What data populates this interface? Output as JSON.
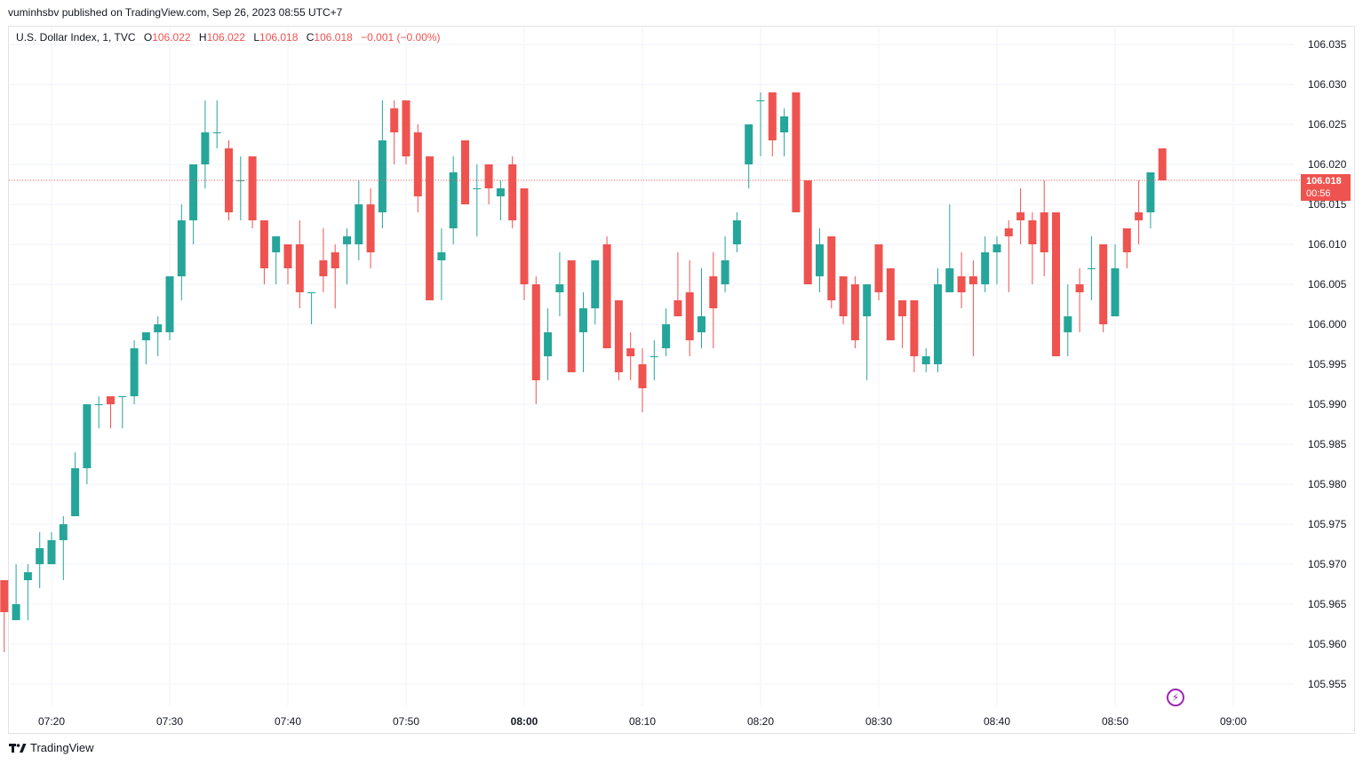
{
  "header": {
    "publish_text": "vuminhsbv published on TradingView.com, Sep 26, 2023 08:55 UTC+7"
  },
  "legend": {
    "symbol": "U.S. Dollar Index, 1, TVC",
    "open_label": "O",
    "open_value": "106.022",
    "high_label": "H",
    "high_value": "106.022",
    "low_label": "L",
    "low_value": "106.018",
    "close_label": "C",
    "close_value": "106.018",
    "change": "−0.001 (−0.00%)"
  },
  "price_tag": {
    "price": "106.018",
    "countdown": "00:56"
  },
  "brand": {
    "name": "TradingView",
    "logo_icon": "tradingview-logo-icon"
  },
  "flash_icon": "lightning-icon",
  "colors": {
    "up": "#26a69a",
    "down": "#ef5350",
    "grid": "#f0f3fa",
    "last_price": "#ef5350"
  },
  "chart_data": {
    "type": "candlestick",
    "interval": "1 minute",
    "y_axis": {
      "range": [
        105.952,
        106.037
      ],
      "ticks": [
        "106.035",
        "106.030",
        "106.025",
        "106.020",
        "106.015",
        "106.010",
        "106.005",
        "106.000",
        "105.995",
        "105.990",
        "105.985",
        "105.980",
        "105.975",
        "105.970",
        "105.965",
        "105.960",
        "105.955"
      ]
    },
    "x_axis": {
      "ticks": [
        "07:20",
        "07:30",
        "07:40",
        "07:50",
        "08:00",
        "08:10",
        "08:20",
        "08:30",
        "08:40",
        "08:50",
        "09:00"
      ],
      "bold_ticks": [
        "08:00"
      ]
    },
    "last_price": 106.018,
    "grid": true,
    "candles": [
      {
        "t": "07:16",
        "o": 105.968,
        "h": 105.968,
        "l": 105.959,
        "c": 105.964
      },
      {
        "t": "07:17",
        "o": 105.963,
        "h": 105.97,
        "l": 105.963,
        "c": 105.965
      },
      {
        "t": "07:18",
        "o": 105.968,
        "h": 105.97,
        "l": 105.963,
        "c": 105.969
      },
      {
        "t": "07:19",
        "o": 105.97,
        "h": 105.974,
        "l": 105.967,
        "c": 105.972
      },
      {
        "t": "07:20",
        "o": 105.97,
        "h": 105.974,
        "l": 105.97,
        "c": 105.973
      },
      {
        "t": "07:21",
        "o": 105.973,
        "h": 105.976,
        "l": 105.968,
        "c": 105.975
      },
      {
        "t": "07:22",
        "o": 105.976,
        "h": 105.984,
        "l": 105.976,
        "c": 105.982
      },
      {
        "t": "07:23",
        "o": 105.982,
        "h": 105.99,
        "l": 105.98,
        "c": 105.99
      },
      {
        "t": "07:24",
        "o": 105.99,
        "h": 105.991,
        "l": 105.987,
        "c": 105.99
      },
      {
        "t": "07:25",
        "o": 105.991,
        "h": 105.991,
        "l": 105.987,
        "c": 105.99
      },
      {
        "t": "07:26",
        "o": 105.991,
        "h": 105.991,
        "l": 105.987,
        "c": 105.991
      },
      {
        "t": "07:27",
        "o": 105.991,
        "h": 105.998,
        "l": 105.99,
        "c": 105.997
      },
      {
        "t": "07:28",
        "o": 105.998,
        "h": 105.999,
        "l": 105.995,
        "c": 105.999
      },
      {
        "t": "07:29",
        "o": 105.999,
        "h": 106.001,
        "l": 105.996,
        "c": 106.0
      },
      {
        "t": "07:30",
        "o": 105.999,
        "h": 106.006,
        "l": 105.998,
        "c": 106.006
      },
      {
        "t": "07:31",
        "o": 106.006,
        "h": 106.015,
        "l": 106.003,
        "c": 106.013
      },
      {
        "t": "07:32",
        "o": 106.013,
        "h": 106.02,
        "l": 106.01,
        "c": 106.02
      },
      {
        "t": "07:33",
        "o": 106.02,
        "h": 106.028,
        "l": 106.017,
        "c": 106.024
      },
      {
        "t": "07:34",
        "o": 106.024,
        "h": 106.028,
        "l": 106.022,
        "c": 106.024
      },
      {
        "t": "07:35",
        "o": 106.022,
        "h": 106.023,
        "l": 106.013,
        "c": 106.014
      },
      {
        "t": "07:36",
        "o": 106.018,
        "h": 106.021,
        "l": 106.013,
        "c": 106.018
      },
      {
        "t": "07:37",
        "o": 106.021,
        "h": 106.021,
        "l": 106.012,
        "c": 106.013
      },
      {
        "t": "07:38",
        "o": 106.013,
        "h": 106.013,
        "l": 106.005,
        "c": 106.007
      },
      {
        "t": "07:39",
        "o": 106.009,
        "h": 106.011,
        "l": 106.005,
        "c": 106.011
      },
      {
        "t": "07:40",
        "o": 106.01,
        "h": 106.01,
        "l": 106.005,
        "c": 106.007
      },
      {
        "t": "07:41",
        "o": 106.01,
        "h": 106.013,
        "l": 106.002,
        "c": 106.004
      },
      {
        "t": "07:42",
        "o": 106.004,
        "h": 106.004,
        "l": 106.0,
        "c": 106.004
      },
      {
        "t": "07:43",
        "o": 106.008,
        "h": 106.012,
        "l": 106.004,
        "c": 106.006
      },
      {
        "t": "07:44",
        "o": 106.009,
        "h": 106.01,
        "l": 106.002,
        "c": 106.007
      },
      {
        "t": "07:45",
        "o": 106.01,
        "h": 106.012,
        "l": 106.005,
        "c": 106.011
      },
      {
        "t": "07:46",
        "o": 106.01,
        "h": 106.018,
        "l": 106.008,
        "c": 106.015
      },
      {
        "t": "07:47",
        "o": 106.015,
        "h": 106.017,
        "l": 106.007,
        "c": 106.009
      },
      {
        "t": "07:48",
        "o": 106.014,
        "h": 106.028,
        "l": 106.012,
        "c": 106.023
      },
      {
        "t": "07:49",
        "o": 106.027,
        "h": 106.028,
        "l": 106.02,
        "c": 106.024
      },
      {
        "t": "07:50",
        "o": 106.028,
        "h": 106.028,
        "l": 106.02,
        "c": 106.021
      },
      {
        "t": "07:51",
        "o": 106.024,
        "h": 106.025,
        "l": 106.014,
        "c": 106.016
      },
      {
        "t": "07:52",
        "o": 106.021,
        "h": 106.021,
        "l": 106.003,
        "c": 106.003
      },
      {
        "t": "07:53",
        "o": 106.008,
        "h": 106.012,
        "l": 106.003,
        "c": 106.009
      },
      {
        "t": "07:54",
        "o": 106.012,
        "h": 106.021,
        "l": 106.01,
        "c": 106.019
      },
      {
        "t": "07:55",
        "o": 106.023,
        "h": 106.023,
        "l": 106.015,
        "c": 106.015
      },
      {
        "t": "07:56",
        "o": 106.017,
        "h": 106.02,
        "l": 106.011,
        "c": 106.017
      },
      {
        "t": "07:57",
        "o": 106.02,
        "h": 106.02,
        "l": 106.015,
        "c": 106.017
      },
      {
        "t": "07:58",
        "o": 106.016,
        "h": 106.018,
        "l": 106.013,
        "c": 106.017
      },
      {
        "t": "07:59",
        "o": 106.02,
        "h": 106.021,
        "l": 106.012,
        "c": 106.013
      },
      {
        "t": "08:00",
        "o": 106.017,
        "h": 106.017,
        "l": 106.003,
        "c": 106.005
      },
      {
        "t": "08:01",
        "o": 106.005,
        "h": 106.006,
        "l": 105.99,
        "c": 105.993
      },
      {
        "t": "08:02",
        "o": 105.996,
        "h": 106.002,
        "l": 105.993,
        "c": 105.999
      },
      {
        "t": "08:03",
        "o": 106.004,
        "h": 106.009,
        "l": 106.001,
        "c": 106.005
      },
      {
        "t": "08:04",
        "o": 106.008,
        "h": 106.008,
        "l": 105.994,
        "c": 105.994
      },
      {
        "t": "08:05",
        "o": 105.999,
        "h": 106.004,
        "l": 105.994,
        "c": 106.002
      },
      {
        "t": "08:06",
        "o": 106.002,
        "h": 106.008,
        "l": 106.0,
        "c": 106.008
      },
      {
        "t": "08:07",
        "o": 106.01,
        "h": 106.011,
        "l": 105.997,
        "c": 105.997
      },
      {
        "t": "08:08",
        "o": 106.003,
        "h": 106.003,
        "l": 105.993,
        "c": 105.994
      },
      {
        "t": "08:09",
        "o": 105.997,
        "h": 105.999,
        "l": 105.993,
        "c": 105.996
      },
      {
        "t": "08:10",
        "o": 105.995,
        "h": 105.997,
        "l": 105.989,
        "c": 105.992
      },
      {
        "t": "08:11",
        "o": 105.996,
        "h": 105.998,
        "l": 105.993,
        "c": 105.996
      },
      {
        "t": "08:12",
        "o": 105.997,
        "h": 106.002,
        "l": 105.996,
        "c": 106.0
      },
      {
        "t": "08:13",
        "o": 106.003,
        "h": 106.009,
        "l": 106.001,
        "c": 106.001
      },
      {
        "t": "08:14",
        "o": 106.004,
        "h": 106.008,
        "l": 105.996,
        "c": 105.998
      },
      {
        "t": "08:15",
        "o": 105.999,
        "h": 106.007,
        "l": 105.997,
        "c": 106.001
      },
      {
        "t": "08:16",
        "o": 106.006,
        "h": 106.009,
        "l": 105.997,
        "c": 106.002
      },
      {
        "t": "08:17",
        "o": 106.005,
        "h": 106.011,
        "l": 106.004,
        "c": 106.008
      },
      {
        "t": "08:18",
        "o": 106.01,
        "h": 106.014,
        "l": 106.009,
        "c": 106.013
      },
      {
        "t": "08:19",
        "o": 106.02,
        "h": 106.025,
        "l": 106.017,
        "c": 106.025
      },
      {
        "t": "08:20",
        "o": 106.028,
        "h": 106.029,
        "l": 106.021,
        "c": 106.028
      },
      {
        "t": "08:21",
        "o": 106.029,
        "h": 106.029,
        "l": 106.021,
        "c": 106.023
      },
      {
        "t": "08:22",
        "o": 106.024,
        "h": 106.027,
        "l": 106.021,
        "c": 106.026
      },
      {
        "t": "08:23",
        "o": 106.029,
        "h": 106.029,
        "l": 106.014,
        "c": 106.014
      },
      {
        "t": "08:24",
        "o": 106.018,
        "h": 106.018,
        "l": 106.005,
        "c": 106.005
      },
      {
        "t": "08:25",
        "o": 106.006,
        "h": 106.012,
        "l": 106.004,
        "c": 106.01
      },
      {
        "t": "08:26",
        "o": 106.011,
        "h": 106.011,
        "l": 106.002,
        "c": 106.003
      },
      {
        "t": "08:27",
        "o": 106.006,
        "h": 106.006,
        "l": 106.0,
        "c": 106.001
      },
      {
        "t": "08:28",
        "o": 106.005,
        "h": 106.006,
        "l": 105.997,
        "c": 105.998
      },
      {
        "t": "08:29",
        "o": 106.001,
        "h": 106.005,
        "l": 105.993,
        "c": 106.005
      },
      {
        "t": "08:30",
        "o": 106.01,
        "h": 106.01,
        "l": 106.003,
        "c": 106.004
      },
      {
        "t": "08:31",
        "o": 106.007,
        "h": 106.007,
        "l": 105.998,
        "c": 105.998
      },
      {
        "t": "08:32",
        "o": 106.003,
        "h": 106.003,
        "l": 105.997,
        "c": 106.001
      },
      {
        "t": "08:33",
        "o": 106.003,
        "h": 106.003,
        "l": 105.994,
        "c": 105.996
      },
      {
        "t": "08:34",
        "o": 105.995,
        "h": 105.997,
        "l": 105.994,
        "c": 105.996
      },
      {
        "t": "08:35",
        "o": 105.995,
        "h": 106.007,
        "l": 105.994,
        "c": 106.005
      },
      {
        "t": "08:36",
        "o": 106.004,
        "h": 106.015,
        "l": 106.004,
        "c": 106.007
      },
      {
        "t": "08:37",
        "o": 106.006,
        "h": 106.009,
        "l": 106.002,
        "c": 106.004
      },
      {
        "t": "08:38",
        "o": 106.006,
        "h": 106.008,
        "l": 105.996,
        "c": 106.005
      },
      {
        "t": "08:39",
        "o": 106.005,
        "h": 106.011,
        "l": 106.004,
        "c": 106.009
      },
      {
        "t": "08:40",
        "o": 106.009,
        "h": 106.011,
        "l": 106.005,
        "c": 106.01
      },
      {
        "t": "08:41",
        "o": 106.012,
        "h": 106.013,
        "l": 106.004,
        "c": 106.011
      },
      {
        "t": "08:42",
        "o": 106.014,
        "h": 106.017,
        "l": 106.01,
        "c": 106.013
      },
      {
        "t": "08:43",
        "o": 106.013,
        "h": 106.014,
        "l": 106.005,
        "c": 106.01
      },
      {
        "t": "08:44",
        "o": 106.014,
        "h": 106.018,
        "l": 106.006,
        "c": 106.009
      },
      {
        "t": "08:45",
        "o": 106.014,
        "h": 106.014,
        "l": 105.996,
        "c": 105.996
      },
      {
        "t": "08:46",
        "o": 105.999,
        "h": 106.005,
        "l": 105.996,
        "c": 106.001
      },
      {
        "t": "08:47",
        "o": 106.005,
        "h": 106.007,
        "l": 105.999,
        "c": 106.004
      },
      {
        "t": "08:48",
        "o": 106.007,
        "h": 106.011,
        "l": 106.003,
        "c": 106.007
      },
      {
        "t": "08:49",
        "o": 106.01,
        "h": 106.01,
        "l": 105.999,
        "c": 106.0
      },
      {
        "t": "08:50",
        "o": 106.001,
        "h": 106.01,
        "l": 106.001,
        "c": 106.007
      },
      {
        "t": "08:51",
        "o": 106.012,
        "h": 106.012,
        "l": 106.007,
        "c": 106.009
      },
      {
        "t": "08:52",
        "o": 106.014,
        "h": 106.018,
        "l": 106.01,
        "c": 106.013
      },
      {
        "t": "08:53",
        "o": 106.014,
        "h": 106.019,
        "l": 106.012,
        "c": 106.019
      },
      {
        "t": "08:54",
        "o": 106.022,
        "h": 106.022,
        "l": 106.018,
        "c": 106.018
      }
    ]
  }
}
